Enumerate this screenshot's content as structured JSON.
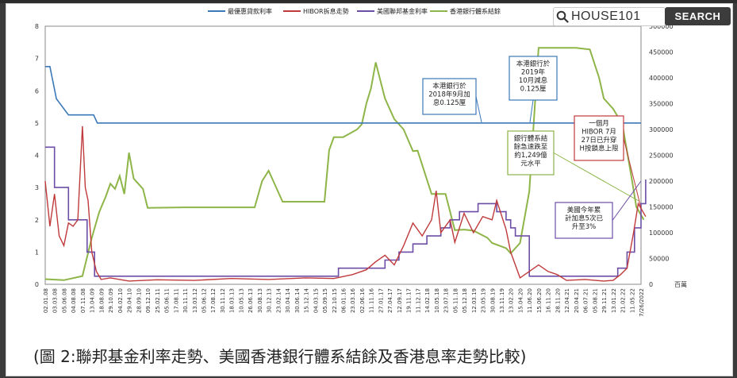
{
  "search": {
    "value": "HOUSE101",
    "button_label": "SEARCH",
    "icon": "search-icon"
  },
  "caption": "(圖 2:聯邦基金利率走勢、美國香港銀行體系結餘及香港息率走勢比較)",
  "chart_data": {
    "type": "line",
    "legend": [
      "最優惠貸款利率",
      "HIBOR拆息走勢",
      "美國聯邦基金利率",
      "香港銀行體系結餘"
    ],
    "legend_placement": "top",
    "colors": {
      "prime": "#3b78b8",
      "hibor": "#c0393b",
      "fed": "#6c4ea6",
      "balance": "#8db548"
    },
    "y_left": {
      "ticks": [
        "0",
        "1",
        "2",
        "3",
        "4",
        "5",
        "6",
        "7",
        "8"
      ],
      "range": [
        0,
        8
      ]
    },
    "y_right": {
      "ticks": [
        "0",
        "50000",
        "100000",
        "150000",
        "200000",
        "250000",
        "300000",
        "350000",
        "400000",
        "450000",
        "500000"
      ],
      "range": [
        0,
        500000
      ],
      "unit": "百萬"
    },
    "x_tick_labels": [
      "02.01.08",
      "03.03.08",
      "05.06.08",
      "04.08.08",
      "07.11.08",
      "13.04.09",
      "18.08.09",
      "29.10.09",
      "04.02.10",
      "29.04.10",
      "28.09.10",
      "09.12.10",
      "25.02.11",
      "05.06.11",
      "17.08.11",
      "30.11.11",
      "13.03.12",
      "05.06.12",
      "17.08.12",
      "30.11.12",
      "18.03.13",
      "10.05.13",
      "26.06.13",
      "30.08.13",
      "30.12.13",
      "23.02.14",
      "30.04.14",
      "30.06.14",
      "15.12.14",
      "04.03.15",
      "05.09.15",
      "22.10.15",
      "06.01.16",
      "23.03.16",
      "02.06.16",
      "11.11.16",
      "27.01.17",
      "27.04.17",
      "12.09.17",
      "19.11.17",
      "11.12.17",
      "14.02.18",
      "10.05.18",
      "23.07.18",
      "05.11.18",
      "05.12.18",
      "12.03.19",
      "23.05.19",
      "30.08.19",
      "13.11.19",
      "13.02.20",
      "15.04.20",
      "11.06.20",
      "15.06.20",
      "16.11.20",
      "28.11.20",
      "12.04.21",
      "20.04.21",
      "06.07.21",
      "05.08.21",
      "29.11.21",
      "13.01.22",
      "21.02.22",
      "11.05.22",
      "7/26/2022"
    ],
    "series": [
      {
        "name": "最優惠貸款利率",
        "axis": "left",
        "points": [
          [
            0,
            6.75
          ],
          [
            0.5,
            6.75
          ],
          [
            1.2,
            5.75
          ],
          [
            2.5,
            5.25
          ],
          [
            5.2,
            5.25
          ],
          [
            5.6,
            5.0
          ],
          [
            64,
            5.0
          ],
          [
            64,
            5.0
          ]
        ]
      },
      {
        "name": "美國聯邦基金利率",
        "axis": "left",
        "points": [
          [
            0,
            0.25
          ],
          [
            64,
            0.25
          ]
        ],
        "step_points": [
          [
            0,
            4.25
          ],
          [
            1,
            3.0
          ],
          [
            2.5,
            2.0
          ],
          [
            3.5,
            2.0
          ],
          [
            4.5,
            1.0
          ],
          [
            5.3,
            0.25
          ],
          [
            30,
            0.25
          ],
          [
            31.5,
            0.5
          ],
          [
            35.5,
            0.5
          ],
          [
            36.5,
            0.75
          ],
          [
            38,
            1.0
          ],
          [
            39.5,
            1.25
          ],
          [
            41,
            1.5
          ],
          [
            42.5,
            1.75
          ],
          [
            43.5,
            2.0
          ],
          [
            44.5,
            2.25
          ],
          [
            46.5,
            2.5
          ],
          [
            48.5,
            2.25
          ],
          [
            49.5,
            2.0
          ],
          [
            50,
            1.75
          ],
          [
            50.5,
            1.5
          ],
          [
            52,
            0.25
          ],
          [
            60,
            0.25
          ],
          [
            61.5,
            0.5
          ],
          [
            62.5,
            1.0
          ],
          [
            63.3,
            1.75
          ],
          [
            64,
            2.5
          ],
          [
            64.5,
            3.25
          ]
        ]
      },
      {
        "name": "HIBOR拆息走勢",
        "axis": "left",
        "points": [
          [
            0,
            3.2
          ],
          [
            0.5,
            1.8
          ],
          [
            1,
            2.8
          ],
          [
            1.5,
            1.5
          ],
          [
            2,
            1.2
          ],
          [
            2.5,
            1.9
          ],
          [
            3,
            1.8
          ],
          [
            3.5,
            2.0
          ],
          [
            4,
            4.9
          ],
          [
            4.3,
            3.0
          ],
          [
            4.6,
            2.6
          ],
          [
            5,
            1.0
          ],
          [
            5.5,
            0.4
          ],
          [
            6,
            0.15
          ],
          [
            7,
            0.2
          ],
          [
            9,
            0.1
          ],
          [
            12,
            0.14
          ],
          [
            16,
            0.12
          ],
          [
            20,
            0.18
          ],
          [
            24,
            0.15
          ],
          [
            28,
            0.2
          ],
          [
            31,
            0.18
          ],
          [
            33,
            0.3
          ],
          [
            34.5,
            0.45
          ],
          [
            35.5,
            0.7
          ],
          [
            36.5,
            0.9
          ],
          [
            37.5,
            0.6
          ],
          [
            38.5,
            1.2
          ],
          [
            39.5,
            1.9
          ],
          [
            40.5,
            1.5
          ],
          [
            41.5,
            2.0
          ],
          [
            42,
            2.9
          ],
          [
            42.5,
            1.6
          ],
          [
            43.5,
            2.0
          ],
          [
            44,
            1.3
          ],
          [
            45,
            2.2
          ],
          [
            46,
            1.6
          ],
          [
            47,
            2.1
          ],
          [
            48,
            2.0
          ],
          [
            48.5,
            2.6
          ],
          [
            49.5,
            1.7
          ],
          [
            50,
            1.0
          ],
          [
            51,
            0.2
          ],
          [
            52,
            0.4
          ],
          [
            53,
            0.6
          ],
          [
            54,
            0.4
          ],
          [
            55,
            0.3
          ],
          [
            56,
            0.12
          ],
          [
            58,
            0.15
          ],
          [
            60,
            0.1
          ],
          [
            61,
            0.12
          ],
          [
            61.8,
            0.3
          ],
          [
            62.5,
            0.5
          ],
          [
            63.2,
            1.6
          ],
          [
            63.7,
            2.5
          ],
          [
            64.5,
            2.1
          ]
        ]
      },
      {
        "name": "香港銀行體系結餘",
        "axis": "right",
        "points": [
          [
            0,
            10000
          ],
          [
            2,
            8000
          ],
          [
            4,
            16000
          ],
          [
            5,
            90000
          ],
          [
            5.8,
            140000
          ],
          [
            6.5,
            170000
          ],
          [
            7,
            195000
          ],
          [
            7.5,
            185000
          ],
          [
            8,
            210000
          ],
          [
            8.5,
            175000
          ],
          [
            9,
            255000
          ],
          [
            9.5,
            205000
          ],
          [
            10,
            195000
          ],
          [
            10.5,
            185000
          ],
          [
            11,
            148000
          ],
          [
            15,
            149000
          ],
          [
            20,
            149000
          ],
          [
            22.5,
            149000
          ],
          [
            23.3,
            200000
          ],
          [
            24,
            220000
          ],
          [
            24.5,
            200000
          ],
          [
            25.5,
            160000
          ],
          [
            30,
            160000
          ],
          [
            30.5,
            260000
          ],
          [
            31,
            285000
          ],
          [
            32,
            285000
          ],
          [
            33.5,
            300000
          ],
          [
            34,
            310000
          ],
          [
            34.5,
            350000
          ],
          [
            35,
            380000
          ],
          [
            35.5,
            430000
          ],
          [
            36,
            395000
          ],
          [
            36.5,
            360000
          ],
          [
            37.5,
            320000
          ],
          [
            38.5,
            300000
          ],
          [
            39.5,
            258000
          ],
          [
            40,
            259000
          ],
          [
            41.5,
            175000
          ],
          [
            43,
            175000
          ],
          [
            44,
            105000
          ],
          [
            45,
            106000
          ],
          [
            46,
            104000
          ],
          [
            47.5,
            90000
          ],
          [
            48,
            80000
          ],
          [
            49.5,
            70000
          ],
          [
            50,
            60000
          ],
          [
            51,
            80000
          ],
          [
            52,
            180000
          ],
          [
            53,
            458000
          ],
          [
            57,
            458000
          ],
          [
            58.5,
            455000
          ],
          [
            59.5,
            400000
          ],
          [
            60,
            360000
          ],
          [
            61,
            340000
          ],
          [
            62,
            310000
          ],
          [
            63,
            205000
          ],
          [
            63.5,
            150000
          ],
          [
            64.3,
            125000
          ]
        ]
      }
    ],
    "annotations": [
      {
        "text": [
          "本港銀行於",
          "2018年9月加",
          "息0.125厘"
        ]
      },
      {
        "text": [
          "本港銀行於",
          "2019年",
          "10月減息",
          "0.125厘"
        ]
      },
      {
        "text": [
          "銀行體系結",
          "餘急速跌至",
          "約1,249億",
          "元水平"
        ]
      },
      {
        "text": [
          "一個月",
          "HIBOR 7月",
          "27日已升穿",
          "H按鎖息上限"
        ]
      },
      {
        "text": [
          "美國今年累",
          "計加息5次已",
          "升至3%"
        ]
      }
    ]
  }
}
